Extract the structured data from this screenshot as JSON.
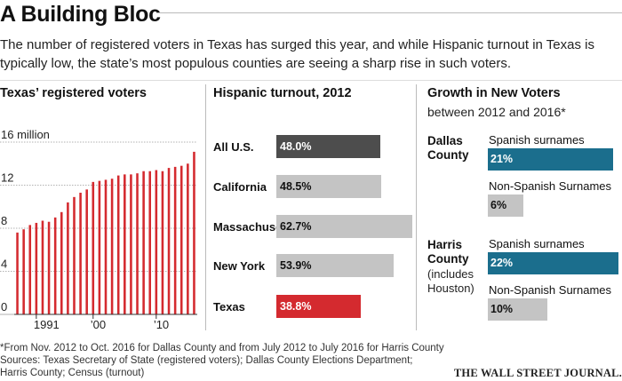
{
  "title": "A Building Bloc",
  "subtitle": "The number of registered voters in Texas has surged this year, and while Hispanic turnout in Texas is typically low, the state’s most populous counties are seeing a sharp rise in such voters.",
  "colors": {
    "red": "#d42a2f",
    "dark_gray": "#4d4d4d",
    "light_gray": "#c4c4c4",
    "teal": "#1b6e8d"
  },
  "chart_data": [
    {
      "type": "bar",
      "title": "Texas’ registered voters",
      "xlabel": "",
      "ylabel": "",
      "y_unit_label": "16 million",
      "ylim": [
        0,
        16
      ],
      "yticks": [
        0,
        4,
        8,
        12,
        16
      ],
      "ytick_labels": [
        "0",
        "4",
        "8",
        "12",
        "16 million"
      ],
      "xtick_labels": [
        "1991",
        "’00",
        "’10"
      ],
      "grid": true,
      "color": "#d42a2f",
      "x": [
        1988,
        1989,
        1990,
        1991,
        1992,
        1993,
        1994,
        1995,
        1996,
        1997,
        1998,
        1999,
        2000,
        2001,
        2002,
        2003,
        2004,
        2005,
        2006,
        2007,
        2008,
        2009,
        2010,
        2011,
        2012,
        2013,
        2014,
        2015,
        2016
      ],
      "values": [
        7.6,
        7.9,
        8.3,
        8.5,
        8.7,
        8.6,
        9.0,
        9.5,
        10.4,
        10.9,
        11.3,
        11.6,
        12.3,
        12.4,
        12.5,
        12.6,
        12.9,
        13.0,
        13.0,
        13.1,
        13.3,
        13.3,
        13.4,
        13.3,
        13.6,
        13.7,
        13.8,
        14.0,
        15.1
      ]
    },
    {
      "type": "bar",
      "orientation": "horizontal",
      "title": "Hispanic turnout, 2012",
      "xlim": [
        0,
        100
      ],
      "categories": [
        "All U.S.",
        "California",
        "Massachusetts",
        "New York",
        "Texas"
      ],
      "values": [
        48.0,
        48.5,
        62.7,
        53.9,
        38.8
      ],
      "value_labels": [
        "48.0%",
        "48.5%",
        "62.7%",
        "53.9%",
        "38.8%"
      ],
      "bar_colors": [
        "#4d4d4d",
        "#c4c4c4",
        "#c4c4c4",
        "#c4c4c4",
        "#d42a2f"
      ]
    },
    {
      "type": "bar",
      "orientation": "horizontal",
      "title": "Growth in New Voters",
      "subtitle": "between 2012 and 2016*",
      "groups": [
        {
          "name": "Dallas County",
          "bars": [
            {
              "label": "Spanish surnames",
              "value": 21,
              "value_label": "21%",
              "color": "#1b6e8d"
            },
            {
              "label": "Non-Spanish Surnames",
              "value": 6,
              "value_label": "6%",
              "color": "#c4c4c4"
            }
          ]
        },
        {
          "name": "Harris County",
          "note": "(includes Houston)",
          "bars": [
            {
              "label": "Spanish surnames",
              "value": 22,
              "value_label": "22%",
              "color": "#1b6e8d"
            },
            {
              "label": "Non-Spanish Surnames",
              "value": 10,
              "value_label": "10%",
              "color": "#c4c4c4"
            }
          ]
        }
      ]
    }
  ],
  "footnotes": [
    "*From Nov. 2012 to Oct. 2016 for Dallas County and from July 2012 to July 2016 for Harris County",
    "Sources: Texas Secretary of State (registered voters); Dallas County Elections Department;",
    "Harris County; Census (turnout)"
  ],
  "credit": "THE WALL STREET JOURNAL."
}
